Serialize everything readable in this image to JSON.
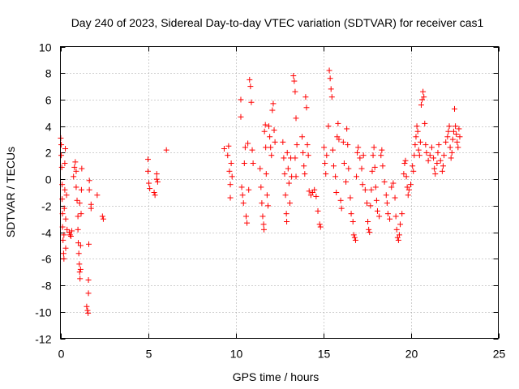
{
  "chart_data": {
    "type": "scatter",
    "title": "Day 240 of 2023, Sidereal Day-to-day VTEC variation (SDTVAR) for receiver cas1",
    "xlabel": "GPS time / hours",
    "ylabel": "SDTVAR / TECUs",
    "xlim": [
      0,
      25
    ],
    "ylim": [
      -12,
      10
    ],
    "xticks": [
      0,
      5,
      10,
      15,
      20,
      25
    ],
    "yticks": [
      -12,
      -10,
      -8,
      -6,
      -4,
      -2,
      0,
      2,
      4,
      6,
      8,
      10
    ],
    "grid": true,
    "marker": "+",
    "color": "#ff0000",
    "series": [
      {
        "name": "SDTVAR",
        "points": [
          [
            0.02,
            3.1
          ],
          [
            0.05,
            2.6
          ],
          [
            0.05,
            1.8
          ],
          [
            0.08,
            0.9
          ],
          [
            0.1,
            -0.4
          ],
          [
            0.1,
            -1.5
          ],
          [
            0.12,
            -2.6
          ],
          [
            0.12,
            -3.6
          ],
          [
            0.15,
            -4.6
          ],
          [
            0.18,
            -5.6
          ],
          [
            0.2,
            -6.0
          ],
          [
            0.2,
            -4.2
          ],
          [
            0.22,
            -2.2
          ],
          [
            0.25,
            -0.8
          ],
          [
            0.25,
            1.2
          ],
          [
            0.28,
            2.3
          ],
          [
            0.3,
            -5.2
          ],
          [
            0.3,
            -3.0
          ],
          [
            0.35,
            -1.2
          ],
          [
            0.38,
            -3.8
          ],
          [
            0.5,
            -4.0
          ],
          [
            0.55,
            -4.2
          ],
          [
            0.6,
            -4.3
          ],
          [
            0.65,
            -3.9
          ],
          [
            0.75,
            0.2
          ],
          [
            0.8,
            0.9
          ],
          [
            0.85,
            1.3
          ],
          [
            0.9,
            0.6
          ],
          [
            0.9,
            -0.6
          ],
          [
            0.95,
            -1.6
          ],
          [
            1.0,
            -2.8
          ],
          [
            1.0,
            -3.8
          ],
          [
            1.02,
            -4.8
          ],
          [
            1.05,
            -5.6
          ],
          [
            1.08,
            -6.4
          ],
          [
            1.1,
            -7.0
          ],
          [
            1.12,
            -7.5
          ],
          [
            1.15,
            -6.8
          ],
          [
            1.15,
            -5.0
          ],
          [
            1.18,
            -2.6
          ],
          [
            1.2,
            -0.8
          ],
          [
            1.22,
            0.8
          ],
          [
            1.1,
            -1.8
          ],
          [
            1.5,
            -9.6
          ],
          [
            1.55,
            -9.9
          ],
          [
            1.58,
            -10.1
          ],
          [
            1.6,
            -8.6
          ],
          [
            1.6,
            -7.6
          ],
          [
            1.62,
            -4.9
          ],
          [
            1.65,
            -0.8
          ],
          [
            1.65,
            -0.1
          ],
          [
            1.75,
            -1.9
          ],
          [
            1.75,
            -2.2
          ],
          [
            2.1,
            -1.2
          ],
          [
            2.4,
            -2.8
          ],
          [
            2.45,
            -3.0
          ],
          [
            5.0,
            1.5
          ],
          [
            5.0,
            0.6
          ],
          [
            5.05,
            -0.3
          ],
          [
            5.1,
            -0.7
          ],
          [
            5.35,
            -1.0
          ],
          [
            5.4,
            -1.2
          ],
          [
            5.5,
            0.4
          ],
          [
            5.5,
            0.0
          ],
          [
            5.55,
            -0.2
          ],
          [
            6.05,
            2.2
          ],
          [
            9.35,
            2.3
          ],
          [
            9.55,
            1.8
          ],
          [
            9.6,
            2.5
          ],
          [
            9.65,
            0.6
          ],
          [
            9.7,
            -0.4
          ],
          [
            9.7,
            -1.4
          ],
          [
            9.75,
            1.2
          ],
          [
            9.8,
            0.2
          ],
          [
            10.3,
            6.0
          ],
          [
            10.3,
            4.7
          ],
          [
            10.35,
            -0.6
          ],
          [
            10.4,
            -1.2
          ],
          [
            10.45,
            -1.8
          ],
          [
            10.5,
            1.2
          ],
          [
            10.55,
            2.4
          ],
          [
            10.6,
            -2.8
          ],
          [
            10.65,
            -3.3
          ],
          [
            10.7,
            2.7
          ],
          [
            10.75,
            -0.8
          ],
          [
            10.8,
            7.5
          ],
          [
            10.85,
            7.0
          ],
          [
            10.9,
            5.8
          ],
          [
            10.95,
            2.2
          ],
          [
            11.0,
            1.2
          ],
          [
            11.4,
            0.8
          ],
          [
            11.45,
            -0.6
          ],
          [
            11.5,
            -1.8
          ],
          [
            11.55,
            -2.8
          ],
          [
            11.6,
            -3.4
          ],
          [
            11.62,
            -3.8
          ],
          [
            11.65,
            3.6
          ],
          [
            11.7,
            4.1
          ],
          [
            11.72,
            2.4
          ],
          [
            11.75,
            0.4
          ],
          [
            11.8,
            -1.2
          ],
          [
            11.85,
            -2.0
          ],
          [
            11.9,
            4.0
          ],
          [
            11.95,
            3.2
          ],
          [
            12.0,
            2.4
          ],
          [
            12.05,
            1.8
          ],
          [
            12.1,
            5.2
          ],
          [
            12.15,
            5.7
          ],
          [
            12.2,
            3.7
          ],
          [
            12.25,
            2.8
          ],
          [
            12.7,
            2.8
          ],
          [
            12.75,
            1.6
          ],
          [
            12.8,
            0.4
          ],
          [
            12.85,
            -1.2
          ],
          [
            12.9,
            -2.6
          ],
          [
            12.92,
            -3.2
          ],
          [
            12.95,
            2.0
          ],
          [
            13.0,
            0.8
          ],
          [
            13.05,
            -0.3
          ],
          [
            13.1,
            -1.8
          ],
          [
            13.15,
            1.6
          ],
          [
            13.2,
            0.2
          ],
          [
            13.3,
            7.8
          ],
          [
            13.35,
            7.4
          ],
          [
            13.4,
            6.6
          ],
          [
            13.45,
            4.6
          ],
          [
            13.4,
            1.6
          ],
          [
            13.45,
            0.2
          ],
          [
            13.5,
            2.6
          ],
          [
            13.8,
            3.2
          ],
          [
            13.85,
            2.0
          ],
          [
            13.9,
            1.0
          ],
          [
            13.95,
            0.4
          ],
          [
            14.0,
            6.2
          ],
          [
            14.05,
            5.4
          ],
          [
            14.1,
            2.6
          ],
          [
            14.15,
            1.8
          ],
          [
            14.2,
            -0.9
          ],
          [
            14.3,
            -1.2
          ],
          [
            14.4,
            -1.0
          ],
          [
            14.5,
            -0.8
          ],
          [
            14.6,
            -1.3
          ],
          [
            14.7,
            -2.4
          ],
          [
            14.8,
            -3.4
          ],
          [
            14.85,
            -3.6
          ],
          [
            15.05,
            2.4
          ],
          [
            15.1,
            1.2
          ],
          [
            15.15,
            0.4
          ],
          [
            15.2,
            1.8
          ],
          [
            15.3,
            4.0
          ],
          [
            15.35,
            8.2
          ],
          [
            15.4,
            7.6
          ],
          [
            15.45,
            6.8
          ],
          [
            15.5,
            6.2
          ],
          [
            15.55,
            2.2
          ],
          [
            15.6,
            1.0
          ],
          [
            15.7,
            0.2
          ],
          [
            15.75,
            -1.0
          ],
          [
            15.8,
            3.2
          ],
          [
            15.85,
            4.2
          ],
          [
            15.9,
            3.0
          ],
          [
            16.0,
            -1.6
          ],
          [
            16.05,
            -2.2
          ],
          [
            16.15,
            2.8
          ],
          [
            16.2,
            1.2
          ],
          [
            16.3,
            -0.2
          ],
          [
            16.35,
            3.8
          ],
          [
            16.4,
            2.6
          ],
          [
            16.45,
            0.8
          ],
          [
            16.55,
            -1.4
          ],
          [
            16.6,
            -2.6
          ],
          [
            16.7,
            -3.2
          ],
          [
            16.75,
            -4.2
          ],
          [
            16.8,
            -4.4
          ],
          [
            16.85,
            -4.6
          ],
          [
            16.9,
            0.2
          ],
          [
            16.95,
            2.0
          ],
          [
            17.0,
            2.4
          ],
          [
            17.1,
            1.6
          ],
          [
            17.2,
            0.8
          ],
          [
            17.25,
            -0.4
          ],
          [
            17.3,
            1.8
          ],
          [
            17.4,
            -0.8
          ],
          [
            17.5,
            -1.8
          ],
          [
            17.55,
            -3.2
          ],
          [
            17.6,
            -3.8
          ],
          [
            17.65,
            -4.0
          ],
          [
            17.7,
            -2.0
          ],
          [
            17.75,
            -0.8
          ],
          [
            17.8,
            0.6
          ],
          [
            17.85,
            1.8
          ],
          [
            17.9,
            2.4
          ],
          [
            17.95,
            0.9
          ],
          [
            18.0,
            -0.6
          ],
          [
            18.05,
            -1.6
          ],
          [
            18.1,
            -2.4
          ],
          [
            18.2,
            -2.8
          ],
          [
            18.3,
            1.8
          ],
          [
            18.35,
            2.2
          ],
          [
            18.4,
            1.0
          ],
          [
            18.5,
            -0.2
          ],
          [
            18.6,
            -1.2
          ],
          [
            18.65,
            -1.8
          ],
          [
            18.7,
            -2.6
          ],
          [
            18.8,
            -3.0
          ],
          [
            18.9,
            -0.6
          ],
          [
            19.0,
            -0.3
          ],
          [
            19.1,
            -1.4
          ],
          [
            19.15,
            -2.8
          ],
          [
            19.2,
            -3.8
          ],
          [
            19.25,
            -4.4
          ],
          [
            19.3,
            -4.6
          ],
          [
            19.35,
            -4.2
          ],
          [
            19.4,
            -3.4
          ],
          [
            19.5,
            -2.6
          ],
          [
            19.6,
            0.4
          ],
          [
            19.65,
            1.2
          ],
          [
            19.7,
            1.4
          ],
          [
            19.75,
            0.2
          ],
          [
            19.8,
            -0.6
          ],
          [
            19.85,
            -1.2
          ],
          [
            19.9,
            -0.8
          ],
          [
            20.0,
            -0.4
          ],
          [
            20.1,
            1.0
          ],
          [
            20.15,
            0.6
          ],
          [
            20.2,
            1.8
          ],
          [
            20.25,
            2.6
          ],
          [
            20.3,
            3.2
          ],
          [
            20.35,
            4.0
          ],
          [
            20.4,
            3.6
          ],
          [
            20.45,
            2.2
          ],
          [
            20.5,
            1.8
          ],
          [
            20.55,
            2.8
          ],
          [
            20.6,
            5.6
          ],
          [
            20.65,
            6.0
          ],
          [
            20.7,
            6.6
          ],
          [
            20.75,
            6.2
          ],
          [
            20.8,
            4.2
          ],
          [
            20.85,
            2.6
          ],
          [
            20.9,
            2.0
          ],
          [
            21.0,
            1.4
          ],
          [
            21.1,
            1.8
          ],
          [
            21.2,
            2.4
          ],
          [
            21.3,
            1.6
          ],
          [
            21.35,
            0.8
          ],
          [
            21.4,
            0.4
          ],
          [
            21.5,
            1.2
          ],
          [
            21.55,
            2.0
          ],
          [
            21.6,
            2.6
          ],
          [
            21.7,
            1.4
          ],
          [
            21.8,
            0.6
          ],
          [
            21.85,
            1.0
          ],
          [
            21.9,
            1.8
          ],
          [
            22.0,
            2.8
          ],
          [
            22.1,
            3.2
          ],
          [
            22.15,
            3.6
          ],
          [
            22.2,
            4.0
          ],
          [
            22.25,
            2.4
          ],
          [
            22.3,
            1.6
          ],
          [
            22.35,
            2.0
          ],
          [
            22.4,
            3.0
          ],
          [
            22.45,
            3.6
          ],
          [
            22.5,
            5.3
          ],
          [
            22.55,
            4.0
          ],
          [
            22.6,
            3.4
          ],
          [
            22.65,
            2.8
          ],
          [
            22.7,
            2.4
          ],
          [
            22.75,
            3.8
          ],
          [
            22.8,
            3.2
          ]
        ]
      }
    ]
  }
}
